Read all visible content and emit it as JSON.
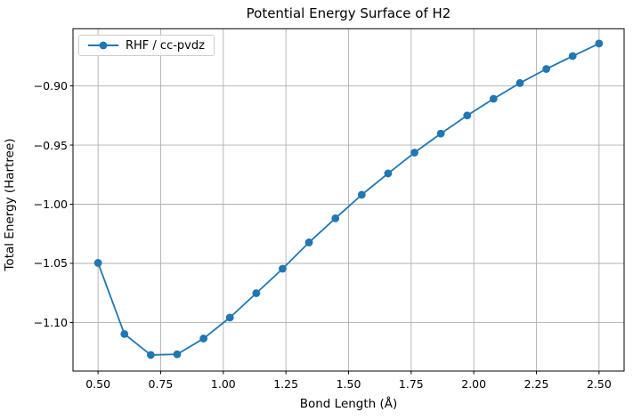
{
  "chart_data": {
    "type": "line",
    "title": "Potential Energy Surface of H2",
    "xlabel": "Bond Length (Å)",
    "ylabel": "Total Energy (Hartree)",
    "grid": true,
    "legend_position": "upper left",
    "xlim": [
      0.4,
      2.6
    ],
    "ylim": [
      -1.141,
      -0.8517
    ],
    "xticks": [
      {
        "value": 0.5,
        "label": "0.50"
      },
      {
        "value": 0.75,
        "label": "0.75"
      },
      {
        "value": 1.0,
        "label": "1.00"
      },
      {
        "value": 1.25,
        "label": "1.25"
      },
      {
        "value": 1.5,
        "label": "1.50"
      },
      {
        "value": 1.75,
        "label": "1.75"
      },
      {
        "value": 2.0,
        "label": "2.00"
      },
      {
        "value": 2.25,
        "label": "2.25"
      },
      {
        "value": 2.5,
        "label": "2.50"
      }
    ],
    "yticks": [
      {
        "value": -0.9,
        "label": "−0.90"
      },
      {
        "value": -0.95,
        "label": "−0.95"
      },
      {
        "value": -1.0,
        "label": "−1.00"
      },
      {
        "value": -1.05,
        "label": "−1.05"
      },
      {
        "value": -1.1,
        "label": "−1.10"
      }
    ],
    "series": [
      {
        "name": "RHF / cc-pvdz",
        "color": "#1f77b4",
        "marker": "circle",
        "x": [
          0.5,
          0.6053,
          0.7105,
          0.8158,
          0.9211,
          1.0263,
          1.1316,
          1.2368,
          1.3421,
          1.4474,
          1.5526,
          1.6579,
          1.7632,
          1.8684,
          1.9737,
          2.0789,
          2.1842,
          2.2895,
          2.3947,
          2.5
        ],
        "y": [
          -1.0496,
          -1.1097,
          -1.1274,
          -1.1268,
          -1.1135,
          -1.0958,
          -1.0752,
          -1.0545,
          -1.0323,
          -1.0119,
          -0.992,
          -0.974,
          -0.9564,
          -0.9403,
          -0.925,
          -0.9109,
          -0.8976,
          -0.8857,
          -0.8748,
          -0.8642
        ]
      }
    ],
    "colors": {
      "line": "#1f77b4",
      "grid": "#b0b0b0",
      "spine": "#000000",
      "text": "#000000",
      "background": "#ffffff"
    }
  }
}
